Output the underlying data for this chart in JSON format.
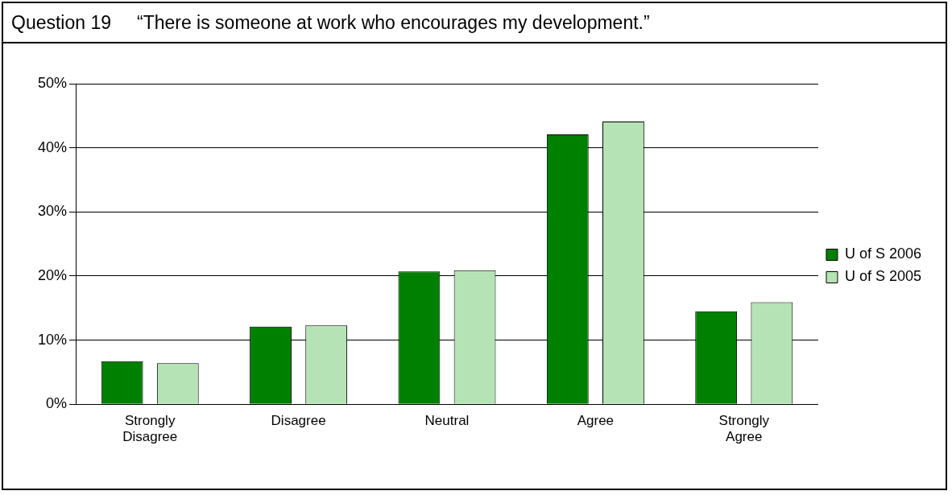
{
  "chart_data": {
    "type": "bar",
    "title": "Question 19     “There is someone at work who encourages my development.”",
    "categories": [
      "Strongly Disagree",
      "Disagree",
      "Neutral",
      "Agree",
      "Strongly Agree"
    ],
    "series": [
      {
        "name": "U of S 2006",
        "color": "#008000",
        "values": [
          6.7,
          12.1,
          20.7,
          42.1,
          14.5
        ]
      },
      {
        "name": "U of S 2005",
        "color": "#b5e3b5",
        "values": [
          6.4,
          12.3,
          20.9,
          44.1,
          15.9
        ]
      }
    ],
    "ylim": [
      0,
      50
    ],
    "yticks": [
      {
        "value": 0,
        "label": "0%"
      },
      {
        "value": 10,
        "label": "10%"
      },
      {
        "value": 20,
        "label": "20%"
      },
      {
        "value": 30,
        "label": "30%"
      },
      {
        "value": 40,
        "label": "40%"
      },
      {
        "value": 50,
        "label": "50%"
      }
    ],
    "grid": "y",
    "legend": "right"
  }
}
